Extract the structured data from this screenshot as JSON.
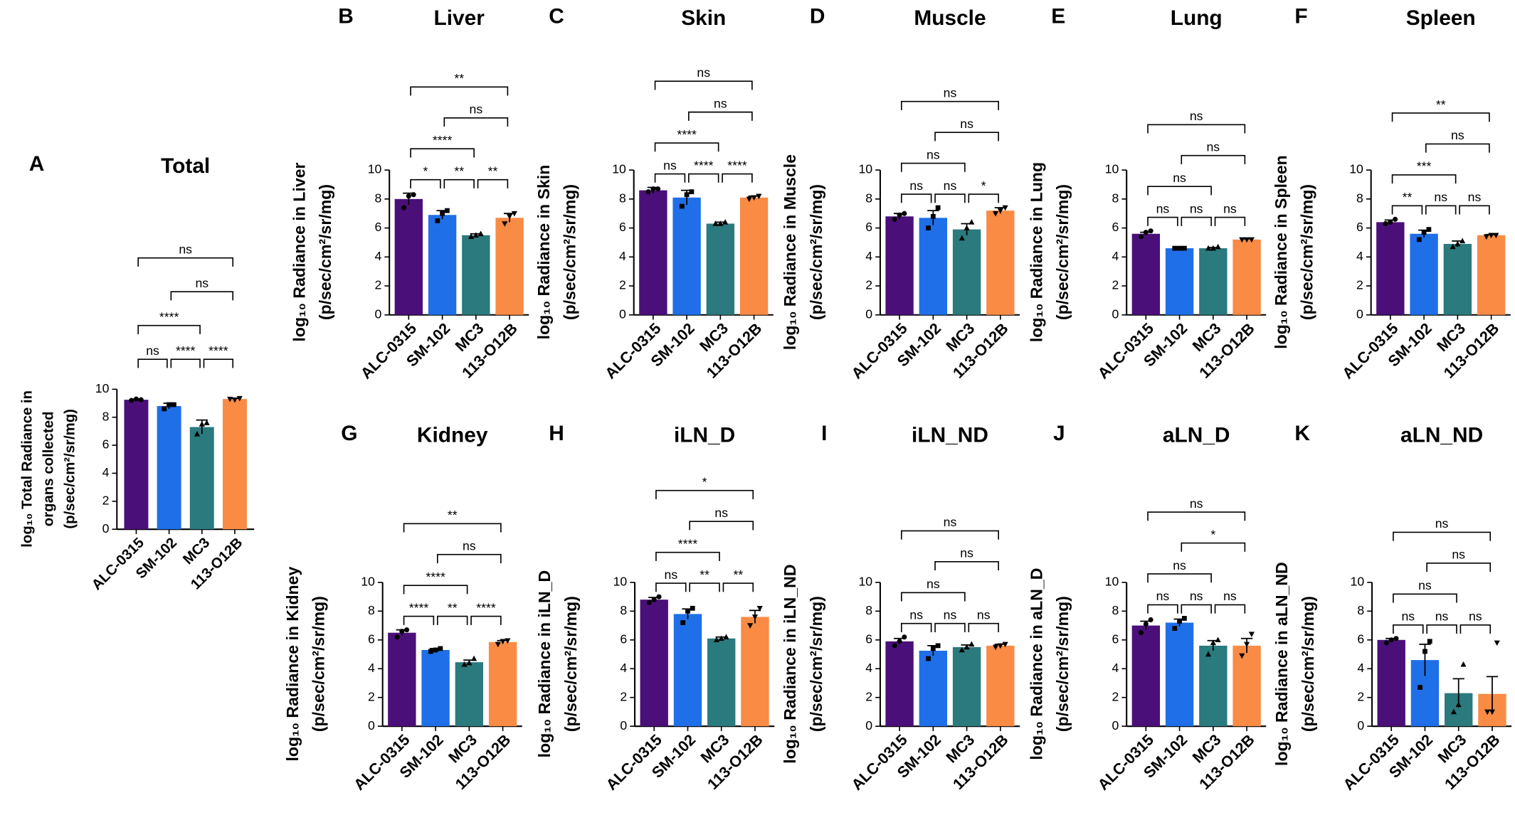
{
  "chart_data": [
    {
      "type": "bar",
      "panel": "A",
      "title": "Total",
      "ylabel": [
        "log₁₀ Total Radiance in",
        "organs collected",
        "(p/sec/cm²/sr/mg)"
      ],
      "categories": [
        "ALC-0315",
        "SM-102",
        "MC3",
        "113-O12B"
      ],
      "colors": [
        "#4b0f7a",
        "#1f6fe8",
        "#2a7a7e",
        "#f98b45"
      ],
      "values": [
        9.25,
        8.8,
        7.3,
        9.3
      ],
      "errors": [
        0.05,
        0.2,
        0.5,
        0.05
      ],
      "points": [
        [
          9.2,
          9.3,
          9.25
        ],
        [
          8.6,
          8.9,
          8.9
        ],
        [
          6.8,
          7.5,
          7.6
        ],
        [
          9.3,
          9.25,
          9.35
        ]
      ],
      "ylim": [
        0,
        10
      ],
      "yticks": [
        0,
        2,
        4,
        6,
        8,
        10
      ],
      "brackets": [
        {
          "from": "ALC-0315",
          "to": "SM-102",
          "label": "ns"
        },
        {
          "from": "MC3",
          "to": "113-O12B",
          "label": "****"
        },
        {
          "from": "SM-102",
          "to": "MC3",
          "label": "****"
        },
        {
          "from": "ALC-0315",
          "to": "MC3",
          "label": "****"
        },
        {
          "from": "SM-102",
          "to": "113-O12B",
          "label": "ns"
        },
        {
          "from": "ALC-0315",
          "to": "113-O12B",
          "label": "ns"
        }
      ]
    },
    {
      "type": "bar",
      "panel": "B",
      "title": "Liver",
      "ylabel": [
        "log₁₀ Radiance in Liver",
        "(p/sec/cm²/sr/mg)"
      ],
      "categories": [
        "ALC-0315",
        "SM-102",
        "MC3",
        "113-O12B"
      ],
      "colors": [
        "#4b0f7a",
        "#1f6fe8",
        "#2a7a7e",
        "#f98b45"
      ],
      "values": [
        8.0,
        6.9,
        5.5,
        6.7
      ],
      "errors": [
        0.4,
        0.3,
        0.1,
        0.3
      ],
      "points": [
        [
          7.4,
          8.2,
          8.3
        ],
        [
          6.5,
          7.0,
          7.2
        ],
        [
          5.4,
          5.5,
          5.6
        ],
        [
          6.3,
          6.8,
          7.0
        ]
      ],
      "ylim": [
        0,
        10
      ],
      "yticks": [
        0,
        2,
        4,
        6,
        8,
        10
      ],
      "brackets": [
        {
          "from": "ALC-0315",
          "to": "SM-102",
          "label": "*"
        },
        {
          "from": "SM-102",
          "to": "MC3",
          "label": "**"
        },
        {
          "from": "MC3",
          "to": "113-O12B",
          "label": "**"
        },
        {
          "from": "ALC-0315",
          "to": "MC3",
          "label": "****"
        },
        {
          "from": "SM-102",
          "to": "113-O12B",
          "label": "ns"
        },
        {
          "from": "ALC-0315",
          "to": "113-O12B",
          "label": "**"
        }
      ]
    },
    {
      "type": "bar",
      "panel": "C",
      "title": "Skin",
      "ylabel": [
        "log₁₀ Radiance in Skin",
        "(p/sec/cm²/sr/mg)"
      ],
      "categories": [
        "ALC-0315",
        "SM-102",
        "MC3",
        "113-O12B"
      ],
      "colors": [
        "#4b0f7a",
        "#1f6fe8",
        "#2a7a7e",
        "#f98b45"
      ],
      "values": [
        8.6,
        8.1,
        6.3,
        8.1
      ],
      "errors": [
        0.2,
        0.5,
        0.1,
        0.1
      ],
      "points": [
        [
          8.5,
          8.7,
          8.7
        ],
        [
          7.5,
          8.3,
          8.5
        ],
        [
          6.3,
          6.3,
          6.4
        ],
        [
          8.0,
          8.1,
          8.2
        ]
      ],
      "ylim": [
        0,
        10
      ],
      "yticks": [
        0,
        2,
        4,
        6,
        8,
        10
      ],
      "brackets": [
        {
          "from": "ALC-0315",
          "to": "SM-102",
          "label": "ns"
        },
        {
          "from": "SM-102",
          "to": "MC3",
          "label": "****"
        },
        {
          "from": "ALC-0315",
          "to": "MC3",
          "label": "****"
        },
        {
          "from": "MC3",
          "to": "113-O12B",
          "label": "****"
        },
        {
          "from": "SM-102",
          "to": "113-O12B",
          "label": "ns"
        },
        {
          "from": "ALC-0315",
          "to": "113-O12B",
          "label": "ns"
        }
      ]
    },
    {
      "type": "bar",
      "panel": "D",
      "title": "Muscle",
      "ylabel": [
        "log₁₀ Radiance in Muscle",
        "(p/sec/cm²/sr/mg)"
      ],
      "categories": [
        "ALC-0315",
        "SM-102",
        "MC3",
        "113-O12B"
      ],
      "colors": [
        "#4b0f7a",
        "#1f6fe8",
        "#2a7a7e",
        "#f98b45"
      ],
      "values": [
        6.8,
        6.7,
        5.9,
        7.2
      ],
      "errors": [
        0.2,
        0.5,
        0.4,
        0.2
      ],
      "points": [
        [
          6.6,
          6.9,
          7.0
        ],
        [
          6.0,
          6.8,
          7.4
        ],
        [
          5.3,
          6.0,
          6.4
        ],
        [
          7.0,
          7.2,
          7.4
        ]
      ],
      "ylim": [
        0,
        10
      ],
      "yticks": [
        0,
        2,
        4,
        6,
        8,
        10
      ],
      "brackets": [
        {
          "from": "ALC-0315",
          "to": "SM-102",
          "label": "ns"
        },
        {
          "from": "SM-102",
          "to": "MC3",
          "label": "ns"
        },
        {
          "from": "MC3",
          "to": "113-O12B",
          "label": "*"
        },
        {
          "from": "ALC-0315",
          "to": "MC3",
          "label": "ns"
        },
        {
          "from": "SM-102",
          "to": "113-O12B",
          "label": "ns"
        },
        {
          "from": "ALC-0315",
          "to": "113-O12B",
          "label": "ns"
        }
      ]
    },
    {
      "type": "bar",
      "panel": "E",
      "title": "Lung",
      "ylabel": [
        "log₁₀ Radiance in Lung",
        "(p/sec/cm²/sr/mg)"
      ],
      "categories": [
        "ALC-0315",
        "SM-102",
        "MC3",
        "113-O12B"
      ],
      "colors": [
        "#4b0f7a",
        "#1f6fe8",
        "#2a7a7e",
        "#f98b45"
      ],
      "values": [
        5.6,
        4.6,
        4.6,
        5.2
      ],
      "errors": [
        0.1,
        0.05,
        0.05,
        0.05
      ],
      "points": [
        [
          5.4,
          5.7,
          5.8
        ],
        [
          4.6,
          4.6,
          4.6
        ],
        [
          4.6,
          4.6,
          4.7
        ],
        [
          5.2,
          5.2,
          5.2
        ]
      ],
      "ylim": [
        0,
        10
      ],
      "yticks": [
        0,
        2,
        4,
        6,
        8,
        10
      ],
      "brackets": [
        {
          "from": "ALC-0315",
          "to": "SM-102",
          "label": "ns"
        },
        {
          "from": "SM-102",
          "to": "MC3",
          "label": "ns"
        },
        {
          "from": "MC3",
          "to": "113-O12B",
          "label": "ns"
        },
        {
          "from": "ALC-0315",
          "to": "MC3",
          "label": "ns"
        },
        {
          "from": "SM-102",
          "to": "113-O12B",
          "label": "ns"
        },
        {
          "from": "ALC-0315",
          "to": "113-O12B",
          "label": "ns"
        }
      ]
    },
    {
      "type": "bar",
      "panel": "F",
      "title": "Spleen",
      "ylabel": [
        "log₁₀ Radiance in Spleen",
        "(p/sec/cm²/sr/mg)"
      ],
      "categories": [
        "ALC-0315",
        "SM-102",
        "MC3",
        "113-O12B"
      ],
      "colors": [
        "#4b0f7a",
        "#1f6fe8",
        "#2a7a7e",
        "#f98b45"
      ],
      "values": [
        6.4,
        5.6,
        4.9,
        5.5
      ],
      "errors": [
        0.15,
        0.25,
        0.2,
        0.05
      ],
      "points": [
        [
          6.3,
          6.4,
          6.6
        ],
        [
          5.2,
          5.7,
          5.9
        ],
        [
          4.7,
          4.9,
          5.1
        ],
        [
          5.4,
          5.5,
          5.5
        ]
      ],
      "ylim": [
        0,
        10
      ],
      "yticks": [
        0,
        2,
        4,
        6,
        8,
        10
      ],
      "brackets": [
        {
          "from": "ALC-0315",
          "to": "SM-102",
          "label": "**"
        },
        {
          "from": "SM-102",
          "to": "MC3",
          "label": "ns"
        },
        {
          "from": "MC3",
          "to": "113-O12B",
          "label": "ns"
        },
        {
          "from": "ALC-0315",
          "to": "MC3",
          "label": "***"
        },
        {
          "from": "SM-102",
          "to": "113-O12B",
          "label": "ns"
        },
        {
          "from": "ALC-0315",
          "to": "113-O12B",
          "label": "**"
        }
      ]
    },
    {
      "type": "bar",
      "panel": "G",
      "title": "Kidney",
      "ylabel": [
        "log₁₀ Radiance in Kidney",
        "(p/sec/cm²/sr/mg)"
      ],
      "categories": [
        "ALC-0315",
        "SM-102",
        "MC3",
        "113-O12B"
      ],
      "colors": [
        "#4b0f7a",
        "#1f6fe8",
        "#2a7a7e",
        "#f98b45"
      ],
      "values": [
        6.5,
        5.3,
        4.45,
        5.85
      ],
      "errors": [
        0.2,
        0.1,
        0.15,
        0.1
      ],
      "points": [
        [
          6.2,
          6.6,
          6.7
        ],
        [
          5.2,
          5.3,
          5.4
        ],
        [
          4.3,
          4.4,
          4.7
        ],
        [
          5.7,
          5.9,
          5.95
        ]
      ],
      "ylim": [
        0,
        10
      ],
      "yticks": [
        0,
        2,
        4,
        6,
        8,
        10
      ],
      "brackets": [
        {
          "from": "ALC-0315",
          "to": "SM-102",
          "label": "****"
        },
        {
          "from": "MC3",
          "to": "113-O12B",
          "label": "****"
        },
        {
          "from": "SM-102",
          "to": "MC3",
          "label": "**"
        },
        {
          "from": "ALC-0315",
          "to": "MC3",
          "label": "****"
        },
        {
          "from": "SM-102",
          "to": "113-O12B",
          "label": "ns"
        },
        {
          "from": "ALC-0315",
          "to": "113-O12B",
          "label": "**"
        }
      ]
    },
    {
      "type": "bar",
      "panel": "H",
      "title": "iLN_D",
      "ylabel": [
        "log₁₀ Radiance in iLN_D",
        "(p/sec/cm²/sr/mg)"
      ],
      "categories": [
        "ALC-0315",
        "SM-102",
        "MC3",
        "113-O12B"
      ],
      "colors": [
        "#4b0f7a",
        "#1f6fe8",
        "#2a7a7e",
        "#f98b45"
      ],
      "values": [
        8.8,
        7.8,
        6.1,
        7.6
      ],
      "errors": [
        0.15,
        0.35,
        0.1,
        0.45
      ],
      "points": [
        [
          8.6,
          8.8,
          9.0
        ],
        [
          7.2,
          8.0,
          8.2
        ],
        [
          6.0,
          6.1,
          6.2
        ],
        [
          7.0,
          7.6,
          8.2
        ]
      ],
      "ylim": [
        0,
        10
      ],
      "yticks": [
        0,
        2,
        4,
        6,
        8,
        10
      ],
      "brackets": [
        {
          "from": "ALC-0315",
          "to": "SM-102",
          "label": "ns"
        },
        {
          "from": "SM-102",
          "to": "MC3",
          "label": "**"
        },
        {
          "from": "MC3",
          "to": "113-O12B",
          "label": "**"
        },
        {
          "from": "ALC-0315",
          "to": "MC3",
          "label": "****"
        },
        {
          "from": "SM-102",
          "to": "113-O12B",
          "label": "ns"
        },
        {
          "from": "ALC-0315",
          "to": "113-O12B",
          "label": "*"
        }
      ]
    },
    {
      "type": "bar",
      "panel": "I",
      "title": "iLN_ND",
      "ylabel": [
        "log₁₀ Radiance in iLN_ND",
        "(p/sec/cm²/sr/mg)"
      ],
      "categories": [
        "ALC-0315",
        "SM-102",
        "MC3",
        "113-O12B"
      ],
      "colors": [
        "#4b0f7a",
        "#1f6fe8",
        "#2a7a7e",
        "#f98b45"
      ],
      "values": [
        5.9,
        5.25,
        5.5,
        5.6
      ],
      "errors": [
        0.2,
        0.35,
        0.15,
        0.1
      ],
      "points": [
        [
          5.6,
          5.9,
          6.2
        ],
        [
          4.7,
          5.4,
          5.6
        ],
        [
          5.3,
          5.5,
          5.7
        ],
        [
          5.5,
          5.6,
          5.7
        ]
      ],
      "ylim": [
        0,
        10
      ],
      "yticks": [
        0,
        2,
        4,
        6,
        8,
        10
      ],
      "brackets": [
        {
          "from": "ALC-0315",
          "to": "SM-102",
          "label": "ns"
        },
        {
          "from": "SM-102",
          "to": "MC3",
          "label": "ns"
        },
        {
          "from": "MC3",
          "to": "113-O12B",
          "label": "ns"
        },
        {
          "from": "ALC-0315",
          "to": "MC3",
          "label": "ns"
        },
        {
          "from": "SM-102",
          "to": "113-O12B",
          "label": "ns"
        },
        {
          "from": "ALC-0315",
          "to": "113-O12B",
          "label": "ns"
        }
      ]
    },
    {
      "type": "bar",
      "panel": "J",
      "title": "aLN_D",
      "ylabel": [
        "log₁₀ Radiance in aLN_D",
        "(p/sec/cm²/sr/mg)"
      ],
      "categories": [
        "ALC-0315",
        "SM-102",
        "MC3",
        "113-O12B"
      ],
      "colors": [
        "#4b0f7a",
        "#1f6fe8",
        "#2a7a7e",
        "#f98b45"
      ],
      "values": [
        7.0,
        7.2,
        5.6,
        5.6
      ],
      "errors": [
        0.3,
        0.25,
        0.35,
        0.5
      ],
      "points": [
        [
          6.5,
          7.1,
          7.4
        ],
        [
          6.8,
          7.3,
          7.5
        ],
        [
          5.0,
          5.8,
          6.0
        ],
        [
          4.9,
          5.7,
          6.4
        ]
      ],
      "ylim": [
        0,
        10
      ],
      "yticks": [
        0,
        2,
        4,
        6,
        8,
        10
      ],
      "brackets": [
        {
          "from": "ALC-0315",
          "to": "SM-102",
          "label": "ns"
        },
        {
          "from": "SM-102",
          "to": "MC3",
          "label": "ns"
        },
        {
          "from": "MC3",
          "to": "113-O12B",
          "label": "ns"
        },
        {
          "from": "ALC-0315",
          "to": "MC3",
          "label": "ns"
        },
        {
          "from": "SM-102",
          "to": "113-O12B",
          "label": "*"
        },
        {
          "from": "ALC-0315",
          "to": "113-O12B",
          "label": "ns"
        }
      ]
    },
    {
      "type": "bar",
      "panel": "K",
      "title": "aLN_ND",
      "ylabel": [
        "log₁₀ Radiance in aLN_ND",
        "(p/sec/cm²/sr/mg)"
      ],
      "categories": [
        "ALC-0315",
        "SM-102",
        "MC3",
        "113-O12B"
      ],
      "colors": [
        "#4b0f7a",
        "#1f6fe8",
        "#2a7a7e",
        "#f98b45"
      ],
      "values": [
        6.0,
        4.6,
        2.3,
        2.25
      ],
      "errors": [
        0.1,
        1.1,
        1.0,
        1.2
      ],
      "points": [
        [
          5.8,
          6.0,
          6.1
        ],
        [
          2.7,
          5.2,
          5.9
        ],
        [
          1.0,
          1.5,
          4.3
        ],
        [
          1.0,
          1.0,
          5.8
        ]
      ],
      "ylim": [
        0,
        10
      ],
      "yticks": [
        0,
        2,
        4,
        6,
        8,
        10
      ],
      "brackets": [
        {
          "from": "ALC-0315",
          "to": "SM-102",
          "label": "ns"
        },
        {
          "from": "SM-102",
          "to": "MC3",
          "label": "ns"
        },
        {
          "from": "MC3",
          "to": "113-O12B",
          "label": "ns"
        },
        {
          "from": "ALC-0315",
          "to": "MC3",
          "label": "ns"
        },
        {
          "from": "SM-102",
          "to": "113-O12B",
          "label": "ns"
        },
        {
          "from": "ALC-0315",
          "to": "113-O12B",
          "label": "ns"
        }
      ]
    }
  ]
}
